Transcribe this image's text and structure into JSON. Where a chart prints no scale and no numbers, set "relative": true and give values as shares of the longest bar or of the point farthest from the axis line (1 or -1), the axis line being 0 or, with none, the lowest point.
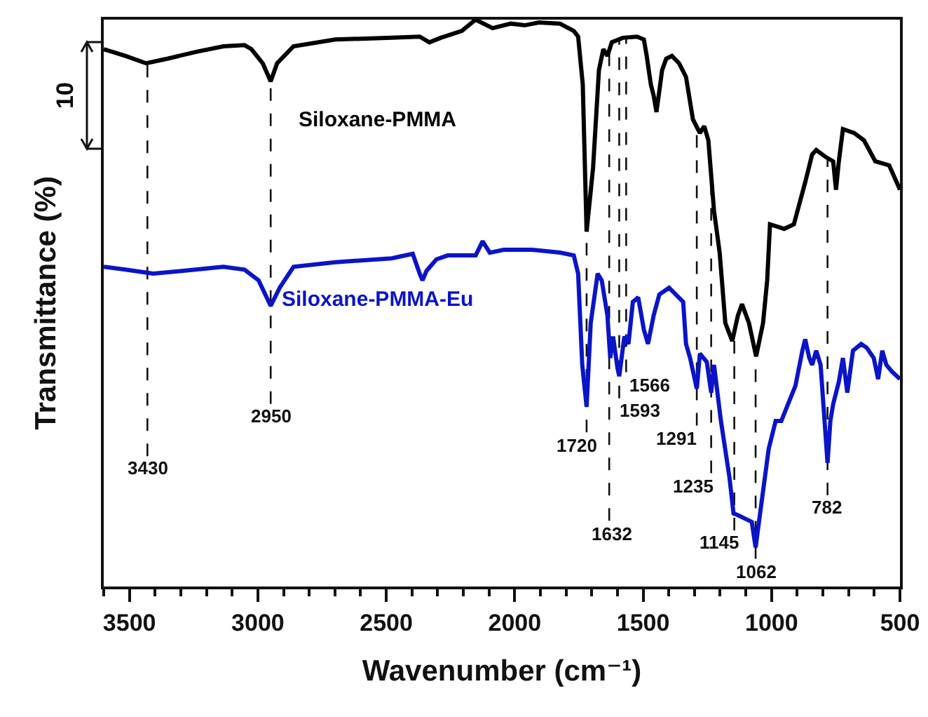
{
  "chart_data": {
    "type": "line",
    "xlabel": "Wavenumber (cm⁻¹)",
    "ylabel": "Transmittance (%)",
    "relative": true,
    "xlim": [
      3600,
      500
    ],
    "xticks": [
      3500,
      3000,
      2500,
      2000,
      1500,
      1000,
      500
    ],
    "grid": false,
    "legend": false,
    "marker": "none",
    "line_style": "solid",
    "series": [
      {
        "name": "Siloxane-PMMA",
        "color": "#000000",
        "x": [
          3600,
          3516,
          3435,
          3353,
          3243,
          3134,
          3052,
          3025,
          2981,
          2950,
          2925,
          2861,
          2698,
          2479,
          2370,
          2332,
          2288,
          2206,
          2152,
          2086,
          2015,
          1961,
          1906,
          1824,
          1770,
          1753,
          1735,
          1720,
          1695,
          1672,
          1655,
          1639,
          1622,
          1579,
          1524,
          1497,
          1486,
          1470,
          1459,
          1448,
          1426,
          1410,
          1388,
          1360,
          1333,
          1306,
          1279,
          1262,
          1246,
          1224,
          1202,
          1180,
          1153,
          1131,
          1115,
          1088,
          1060,
          1033,
          1017,
          1006,
          951,
          913,
          869,
          842,
          826,
          787,
          760,
          749,
          738,
          722,
          678,
          640,
          596,
          542,
          500
        ],
        "values": [
          0.948,
          0.936,
          0.923,
          0.931,
          0.943,
          0.953,
          0.955,
          0.948,
          0.923,
          0.891,
          0.923,
          0.953,
          0.965,
          0.968,
          0.97,
          0.96,
          0.968,
          0.98,
          1.0,
          0.985,
          0.993,
          0.99,
          0.995,
          0.993,
          0.98,
          0.97,
          0.886,
          0.626,
          0.738,
          0.911,
          0.948,
          0.936,
          0.96,
          0.968,
          0.97,
          0.965,
          0.936,
          0.886,
          0.866,
          0.837,
          0.911,
          0.931,
          0.936,
          0.923,
          0.899,
          0.824,
          0.8,
          0.812,
          0.787,
          0.663,
          0.589,
          0.465,
          0.433,
          0.478,
          0.498,
          0.465,
          0.406,
          0.465,
          0.54,
          0.639,
          0.631,
          0.639,
          0.713,
          0.762,
          0.77,
          0.757,
          0.75,
          0.7,
          0.75,
          0.807,
          0.8,
          0.787,
          0.75,
          0.743,
          0.7
        ]
      },
      {
        "name": "Siloxane-PMMA-Eu",
        "color": "#0a14c8",
        "x": [
          3600,
          3516,
          3407,
          3243,
          3134,
          3052,
          2997,
          2950,
          2915,
          2861,
          2698,
          2479,
          2397,
          2370,
          2359,
          2343,
          2305,
          2261,
          2152,
          2125,
          2097,
          2043,
          1933,
          1824,
          1770,
          1753,
          1737,
          1720,
          1704,
          1677,
          1661,
          1639,
          1628,
          1617,
          1600,
          1593,
          1573,
          1557,
          1540,
          1519,
          1497,
          1481,
          1459,
          1437,
          1399,
          1344,
          1333,
          1317,
          1291,
          1279,
          1252,
          1235,
          1224,
          1197,
          1164,
          1148,
          1131,
          1077,
          1062,
          1044,
          1011,
          984,
          962,
          940,
          907,
          880,
          869,
          853,
          842,
          826,
          809,
          782,
          771,
          760,
          738,
          722,
          705,
          683,
          651,
          629,
          602,
          585,
          569,
          553,
          531,
          500
        ],
        "values": [
          0.564,
          0.559,
          0.552,
          0.559,
          0.564,
          0.559,
          0.54,
          0.495,
          0.527,
          0.564,
          0.572,
          0.579,
          0.587,
          0.552,
          0.54,
          0.557,
          0.577,
          0.584,
          0.584,
          0.609,
          0.589,
          0.594,
          0.594,
          0.589,
          0.584,
          0.552,
          0.391,
          0.317,
          0.465,
          0.552,
          0.54,
          0.478,
          0.403,
          0.441,
          0.386,
          0.371,
          0.441,
          0.428,
          0.502,
          0.51,
          0.453,
          0.428,
          0.478,
          0.515,
          0.527,
          0.502,
          0.428,
          0.403,
          0.349,
          0.411,
          0.396,
          0.342,
          0.391,
          0.292,
          0.193,
          0.129,
          0.126,
          0.114,
          0.069,
          0.131,
          0.243,
          0.292,
          0.292,
          0.317,
          0.354,
          0.416,
          0.436,
          0.403,
          0.391,
          0.416,
          0.391,
          0.218,
          0.292,
          0.322,
          0.361,
          0.403,
          0.342,
          0.416,
          0.428,
          0.421,
          0.403,
          0.366,
          0.416,
          0.391,
          0.379,
          0.366
        ]
      }
    ],
    "annotations": [
      "10"
    ],
    "ref_lines": [
      {
        "axis": "x",
        "value": 3430,
        "label": "3430",
        "line_style": "dashed"
      },
      {
        "axis": "x",
        "value": 2950,
        "label": "2950",
        "line_style": "dashed"
      },
      {
        "axis": "x",
        "value": 1720,
        "label": "1720",
        "line_style": "dashed"
      },
      {
        "axis": "x",
        "value": 1632,
        "label": "1632",
        "line_style": "dashed"
      },
      {
        "axis": "x",
        "value": 1593,
        "label": "1593",
        "line_style": "dashed"
      },
      {
        "axis": "x",
        "value": 1566,
        "label": "1566",
        "line_style": "dashed"
      },
      {
        "axis": "x",
        "value": 1291,
        "label": "1291",
        "line_style": "dashed"
      },
      {
        "axis": "x",
        "value": 1235,
        "label": "1235",
        "line_style": "dashed"
      },
      {
        "axis": "x",
        "value": 1145,
        "label": "1145",
        "line_style": "dashed"
      },
      {
        "axis": "x",
        "value": 1062,
        "label": "1062",
        "line_style": "dashed"
      },
      {
        "axis": "x",
        "value": 782,
        "label": "782",
        "line_style": "dashed"
      }
    ]
  }
}
